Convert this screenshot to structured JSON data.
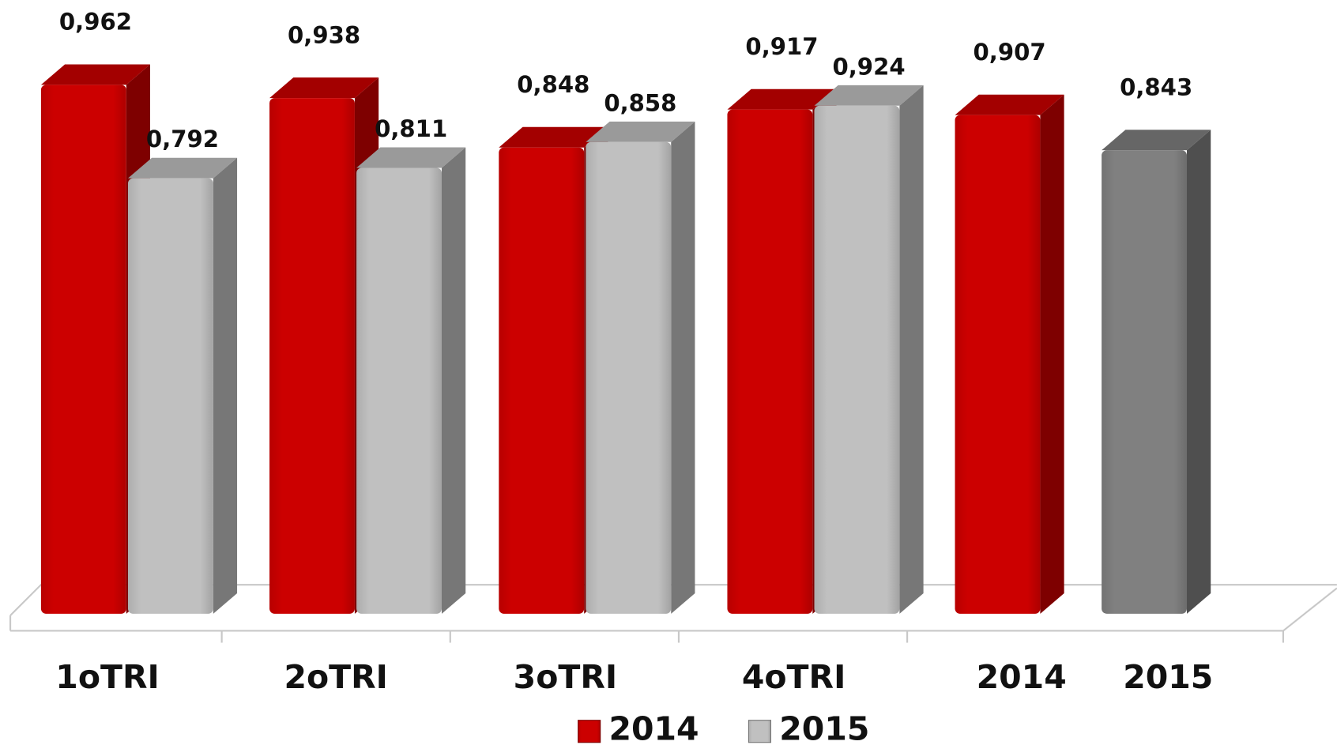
{
  "chart_data": {
    "type": "bar3d",
    "categories": [
      "1oTRI",
      "2oTRI",
      "3oTRI",
      "4oTRI",
      "2014",
      "2015"
    ],
    "series": [
      {
        "name": "2014",
        "color": "#cc0000",
        "values": [
          0.962,
          0.938,
          0.848,
          0.917,
          0.907,
          null
        ],
        "value_labels": [
          "0,962",
          "0,938",
          "0,848",
          "0,917",
          "0,907",
          null
        ]
      },
      {
        "name": "2015",
        "color": "#c0c0c0",
        "colors": [
          null,
          null,
          null,
          null,
          null,
          "#808080"
        ],
        "values": [
          0.792,
          0.811,
          0.858,
          0.924,
          null,
          0.843
        ],
        "value_labels": [
          "0,792",
          "0,811",
          "0,858",
          "0,924",
          null,
          "0,843"
        ]
      }
    ],
    "legend": "bottom"
  }
}
